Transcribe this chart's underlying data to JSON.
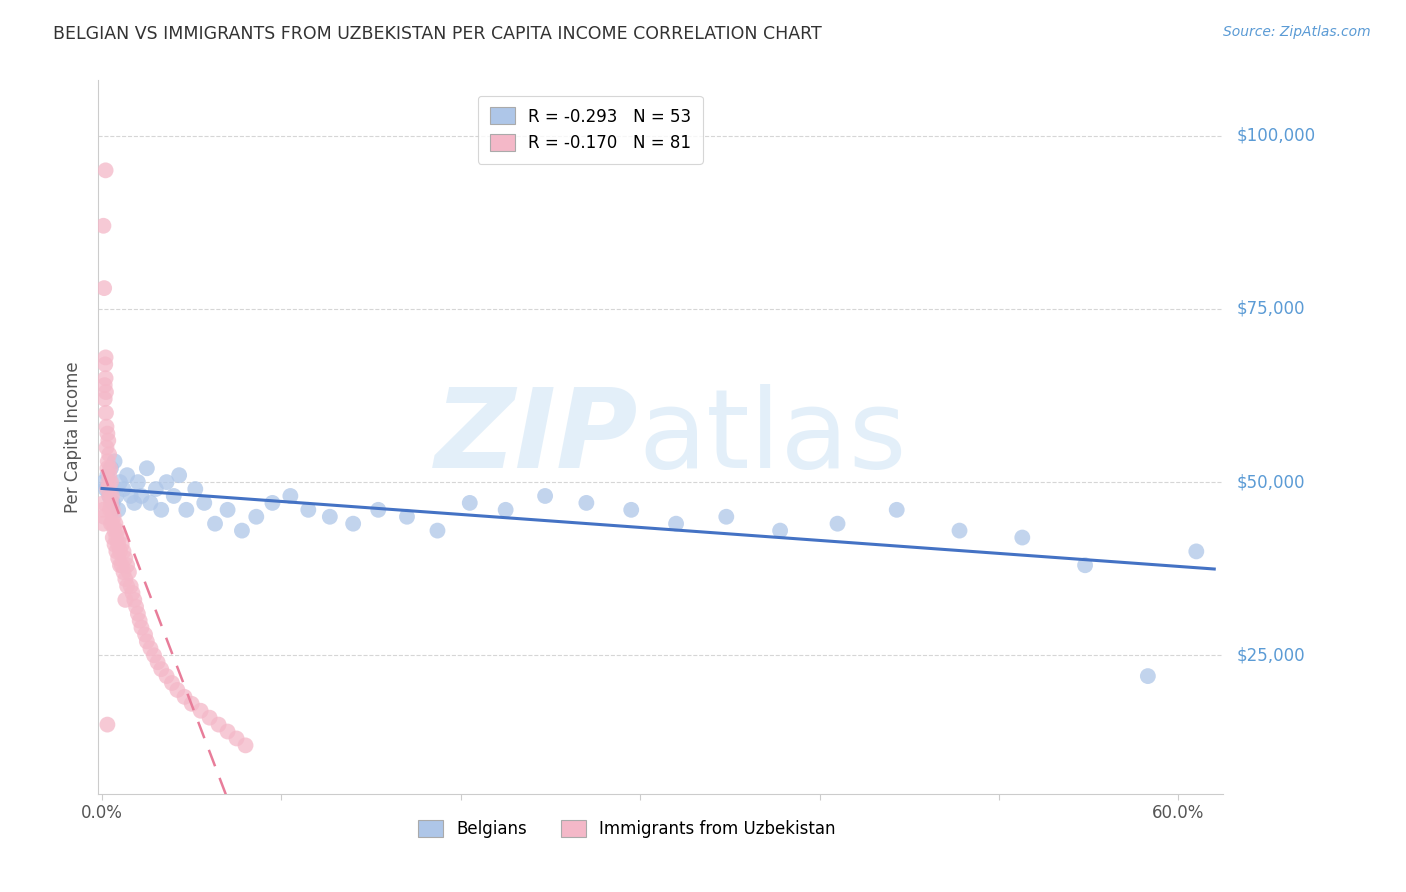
{
  "title": "BELGIAN VS IMMIGRANTS FROM UZBEKISTAN PER CAPITA INCOME CORRELATION CHART",
  "source": "Source: ZipAtlas.com",
  "ylabel": "Per Capita Income",
  "ytick_labels": [
    "$25,000",
    "$50,000",
    "$75,000",
    "$100,000"
  ],
  "ytick_values": [
    25000,
    50000,
    75000,
    100000
  ],
  "ymin": 5000,
  "ymax": 108000,
  "xmin": -0.002,
  "xmax": 0.625,
  "legend_entries": [
    {
      "label": "R = -0.293   N = 53",
      "color": "#aec6e8"
    },
    {
      "label": "R = -0.170   N = 81",
      "color": "#f4b8c8"
    }
  ],
  "legend_bottom": [
    "Belgians",
    "Immigrants from Uzbekistan"
  ],
  "title_color": "#333333",
  "source_color": "#5b9bd5",
  "axis_label_color": "#555555",
  "ytick_color": "#5b9bd5",
  "xtick_color": "#555555",
  "grid_color": "#cccccc",
  "blue_scatter_color": "#aec6e8",
  "pink_scatter_color": "#f4b8c8",
  "blue_line_color": "#4472c4",
  "pink_line_color": "#e87d9a",
  "belgians_x": [
    0.001,
    0.002,
    0.003,
    0.004,
    0.005,
    0.006,
    0.007,
    0.008,
    0.009,
    0.01,
    0.012,
    0.014,
    0.016,
    0.018,
    0.02,
    0.022,
    0.025,
    0.027,
    0.03,
    0.033,
    0.036,
    0.04,
    0.043,
    0.047,
    0.052,
    0.057,
    0.063,
    0.07,
    0.078,
    0.086,
    0.095,
    0.105,
    0.115,
    0.127,
    0.14,
    0.154,
    0.17,
    0.187,
    0.205,
    0.225,
    0.247,
    0.27,
    0.295,
    0.32,
    0.348,
    0.378,
    0.41,
    0.443,
    0.478,
    0.513,
    0.548,
    0.583,
    0.61
  ],
  "belgians_y": [
    50000,
    49000,
    51000,
    48000,
    52000,
    47000,
    53000,
    48000,
    46000,
    50000,
    49000,
    51000,
    48000,
    47000,
    50000,
    48000,
    52000,
    47000,
    49000,
    46000,
    50000,
    48000,
    51000,
    46000,
    49000,
    47000,
    44000,
    46000,
    43000,
    45000,
    47000,
    48000,
    46000,
    45000,
    44000,
    46000,
    45000,
    43000,
    47000,
    46000,
    48000,
    47000,
    46000,
    44000,
    45000,
    43000,
    44000,
    46000,
    43000,
    42000,
    38000,
    22000,
    40000
  ],
  "uzbekistan_x": [
    0.0005,
    0.0008,
    0.001,
    0.0012,
    0.0015,
    0.0015,
    0.0018,
    0.002,
    0.002,
    0.0022,
    0.0022,
    0.0025,
    0.0025,
    0.003,
    0.003,
    0.003,
    0.0032,
    0.0035,
    0.0035,
    0.004,
    0.004,
    0.0042,
    0.0045,
    0.0045,
    0.005,
    0.005,
    0.005,
    0.0055,
    0.006,
    0.006,
    0.006,
    0.0065,
    0.007,
    0.007,
    0.0075,
    0.008,
    0.008,
    0.0085,
    0.009,
    0.009,
    0.0095,
    0.01,
    0.01,
    0.011,
    0.011,
    0.012,
    0.012,
    0.013,
    0.013,
    0.014,
    0.014,
    0.015,
    0.016,
    0.017,
    0.018,
    0.019,
    0.02,
    0.021,
    0.022,
    0.024,
    0.025,
    0.027,
    0.029,
    0.031,
    0.033,
    0.036,
    0.039,
    0.042,
    0.046,
    0.05,
    0.055,
    0.06,
    0.065,
    0.07,
    0.075,
    0.08,
    0.0008,
    0.0012,
    0.002,
    0.003,
    0.013
  ],
  "uzbekistan_y": [
    46000,
    44000,
    47000,
    45000,
    64000,
    62000,
    67000,
    65000,
    68000,
    60000,
    63000,
    58000,
    55000,
    57000,
    52000,
    49000,
    53000,
    56000,
    50000,
    54000,
    51000,
    48000,
    52000,
    46000,
    50000,
    47000,
    44000,
    48000,
    46000,
    44000,
    42000,
    45000,
    43000,
    41000,
    44000,
    42000,
    40000,
    43000,
    41000,
    39000,
    42000,
    40000,
    38000,
    41000,
    38000,
    40000,
    37000,
    39000,
    36000,
    38000,
    35000,
    37000,
    35000,
    34000,
    33000,
    32000,
    31000,
    30000,
    29000,
    28000,
    27000,
    26000,
    25000,
    24000,
    23000,
    22000,
    21000,
    20000,
    19000,
    18000,
    17000,
    16000,
    15000,
    14000,
    13000,
    12000,
    87000,
    78000,
    95000,
    15000,
    33000
  ]
}
